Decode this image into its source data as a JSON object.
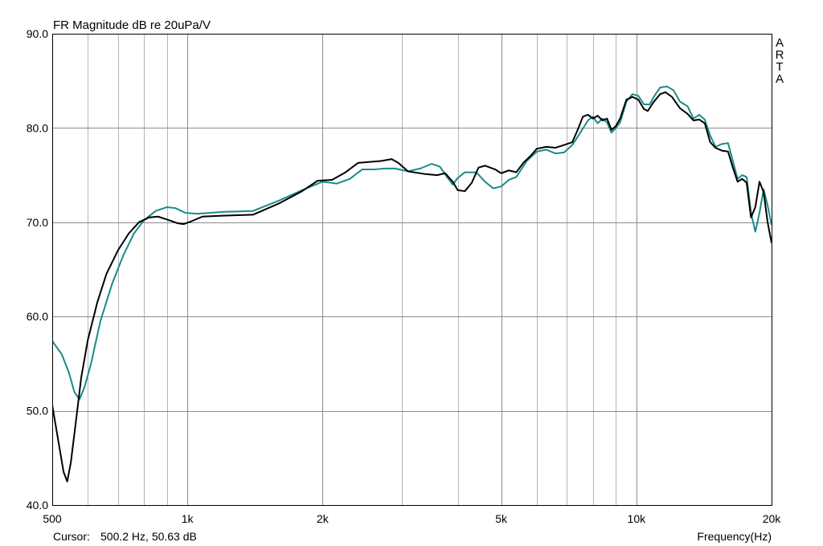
{
  "title": "FR Magnitude dB re 20uPa/V",
  "brand": [
    "A",
    "R",
    "T",
    "A"
  ],
  "cursor": {
    "label": "Cursor:",
    "value": "500.2 Hz, 50.63 dB"
  },
  "colors": {
    "background": "#ffffff",
    "grid": "#b4b4b4",
    "grid_major": "#8c8c8c",
    "frame": "#000000",
    "series1": "#000000",
    "series2": "#1a8a8a"
  },
  "chart_data": {
    "type": "line",
    "title": "FR Magnitude dB re 20uPa/V",
    "xlabel": "Frequency(Hz)",
    "ylabel": "",
    "xscale": "log",
    "xlim": [
      500,
      20000
    ],
    "ylim": [
      40,
      90
    ],
    "grid": true,
    "x_ticks": [
      {
        "value": 500,
        "label": "500"
      },
      {
        "value": 1000,
        "label": "1k"
      },
      {
        "value": 2000,
        "label": "2k"
      },
      {
        "value": 5000,
        "label": "5k"
      },
      {
        "value": 10000,
        "label": "10k"
      },
      {
        "value": 20000,
        "label": "20k"
      }
    ],
    "x_minor_grid": [
      600,
      700,
      800,
      900,
      3000,
      4000,
      6000,
      7000,
      8000,
      9000
    ],
    "y_ticks": [
      {
        "value": 40,
        "label": "40.0"
      },
      {
        "value": 50,
        "label": "50.0"
      },
      {
        "value": 60,
        "label": "60.0"
      },
      {
        "value": 70,
        "label": "70.0"
      },
      {
        "value": 80,
        "label": "80.0"
      },
      {
        "value": 90,
        "label": "90.0"
      }
    ],
    "series": [
      {
        "color": "#000000",
        "points": [
          [
            500,
            50.6
          ],
          [
            515,
            47.0
          ],
          [
            530,
            43.5
          ],
          [
            540,
            42.5
          ],
          [
            550,
            44.5
          ],
          [
            565,
            49.0
          ],
          [
            580,
            53.5
          ],
          [
            600,
            57.5
          ],
          [
            630,
            61.5
          ],
          [
            660,
            64.5
          ],
          [
            700,
            67.0
          ],
          [
            740,
            68.8
          ],
          [
            780,
            70.0
          ],
          [
            820,
            70.5
          ],
          [
            860,
            70.6
          ],
          [
            900,
            70.3
          ],
          [
            950,
            69.9
          ],
          [
            980,
            69.8
          ],
          [
            1020,
            70.1
          ],
          [
            1080,
            70.6
          ],
          [
            1200,
            70.7
          ],
          [
            1400,
            70.8
          ],
          [
            1600,
            72.0
          ],
          [
            1800,
            73.3
          ],
          [
            1950,
            74.4
          ],
          [
            2100,
            74.5
          ],
          [
            2250,
            75.3
          ],
          [
            2400,
            76.3
          ],
          [
            2550,
            76.4
          ],
          [
            2700,
            76.5
          ],
          [
            2850,
            76.7
          ],
          [
            2950,
            76.3
          ],
          [
            3100,
            75.4
          ],
          [
            3400,
            75.1
          ],
          [
            3600,
            75.0
          ],
          [
            3750,
            75.2
          ],
          [
            3900,
            74.3
          ],
          [
            4000,
            73.4
          ],
          [
            4150,
            73.3
          ],
          [
            4300,
            74.2
          ],
          [
            4450,
            75.8
          ],
          [
            4600,
            76.0
          ],
          [
            4850,
            75.6
          ],
          [
            5000,
            75.2
          ],
          [
            5200,
            75.5
          ],
          [
            5400,
            75.3
          ],
          [
            5600,
            76.3
          ],
          [
            5800,
            77.0
          ],
          [
            6000,
            77.8
          ],
          [
            6300,
            78.0
          ],
          [
            6600,
            77.9
          ],
          [
            6900,
            78.2
          ],
          [
            7200,
            78.5
          ],
          [
            7400,
            79.8
          ],
          [
            7600,
            81.2
          ],
          [
            7800,
            81.4
          ],
          [
            8000,
            81.0
          ],
          [
            8200,
            81.3
          ],
          [
            8400,
            80.8
          ],
          [
            8600,
            81.0
          ],
          [
            8800,
            79.8
          ],
          [
            9000,
            80.2
          ],
          [
            9200,
            81.0
          ],
          [
            9500,
            83.0
          ],
          [
            9800,
            83.3
          ],
          [
            10100,
            83.0
          ],
          [
            10400,
            82.0
          ],
          [
            10600,
            81.8
          ],
          [
            10900,
            82.7
          ],
          [
            11300,
            83.6
          ],
          [
            11600,
            83.8
          ],
          [
            12000,
            83.3
          ],
          [
            12500,
            82.1
          ],
          [
            13000,
            81.5
          ],
          [
            13400,
            80.8
          ],
          [
            13800,
            80.9
          ],
          [
            14200,
            80.5
          ],
          [
            14600,
            78.5
          ],
          [
            15000,
            77.9
          ],
          [
            15500,
            77.6
          ],
          [
            16000,
            77.5
          ],
          [
            16400,
            75.8
          ],
          [
            16800,
            74.3
          ],
          [
            17200,
            74.6
          ],
          [
            17600,
            74.2
          ],
          [
            18000,
            70.5
          ],
          [
            18400,
            71.6
          ],
          [
            18800,
            74.3
          ],
          [
            19200,
            73.2
          ],
          [
            19600,
            70.0
          ],
          [
            20000,
            67.8
          ]
        ]
      },
      {
        "color": "#1a8a8a",
        "points": [
          [
            500,
            57.4
          ],
          [
            525,
            56.0
          ],
          [
            545,
            54.0
          ],
          [
            560,
            52.0
          ],
          [
            575,
            51.2
          ],
          [
            590,
            52.5
          ],
          [
            610,
            55.0
          ],
          [
            640,
            59.5
          ],
          [
            680,
            63.5
          ],
          [
            720,
            66.5
          ],
          [
            760,
            68.8
          ],
          [
            800,
            70.2
          ],
          [
            850,
            71.2
          ],
          [
            900,
            71.6
          ],
          [
            940,
            71.5
          ],
          [
            990,
            71.0
          ],
          [
            1050,
            70.9
          ],
          [
            1200,
            71.1
          ],
          [
            1400,
            71.2
          ],
          [
            1600,
            72.3
          ],
          [
            1800,
            73.4
          ],
          [
            2000,
            74.3
          ],
          [
            2150,
            74.1
          ],
          [
            2300,
            74.6
          ],
          [
            2450,
            75.6
          ],
          [
            2600,
            75.6
          ],
          [
            2750,
            75.7
          ],
          [
            2900,
            75.7
          ],
          [
            3100,
            75.4
          ],
          [
            3300,
            75.7
          ],
          [
            3500,
            76.2
          ],
          [
            3650,
            75.9
          ],
          [
            3800,
            74.7
          ],
          [
            3900,
            74.0
          ],
          [
            4000,
            74.7
          ],
          [
            4150,
            75.3
          ],
          [
            4400,
            75.3
          ],
          [
            4600,
            74.3
          ],
          [
            4800,
            73.6
          ],
          [
            5000,
            73.8
          ],
          [
            5200,
            74.5
          ],
          [
            5400,
            74.8
          ],
          [
            5700,
            76.5
          ],
          [
            6000,
            77.5
          ],
          [
            6300,
            77.7
          ],
          [
            6600,
            77.3
          ],
          [
            6900,
            77.4
          ],
          [
            7200,
            78.2
          ],
          [
            7500,
            79.5
          ],
          [
            7800,
            80.8
          ],
          [
            8000,
            81.2
          ],
          [
            8200,
            80.5
          ],
          [
            8400,
            81.0
          ],
          [
            8600,
            80.6
          ],
          [
            8800,
            79.5
          ],
          [
            9000,
            80.0
          ],
          [
            9200,
            80.6
          ],
          [
            9500,
            82.8
          ],
          [
            9800,
            83.6
          ],
          [
            10100,
            83.4
          ],
          [
            10400,
            82.5
          ],
          [
            10700,
            82.5
          ],
          [
            11000,
            83.5
          ],
          [
            11300,
            84.3
          ],
          [
            11700,
            84.4
          ],
          [
            12100,
            84.0
          ],
          [
            12500,
            82.8
          ],
          [
            13000,
            82.3
          ],
          [
            13400,
            81.0
          ],
          [
            13800,
            81.4
          ],
          [
            14200,
            80.9
          ],
          [
            14600,
            79.2
          ],
          [
            15000,
            78.0
          ],
          [
            15500,
            78.3
          ],
          [
            16000,
            78.4
          ],
          [
            16400,
            76.5
          ],
          [
            16800,
            74.6
          ],
          [
            17200,
            75.0
          ],
          [
            17600,
            74.8
          ],
          [
            18000,
            71.0
          ],
          [
            18400,
            69.0
          ],
          [
            18800,
            71.0
          ],
          [
            19200,
            73.5
          ],
          [
            19600,
            71.8
          ],
          [
            20000,
            69.7
          ]
        ]
      }
    ]
  }
}
